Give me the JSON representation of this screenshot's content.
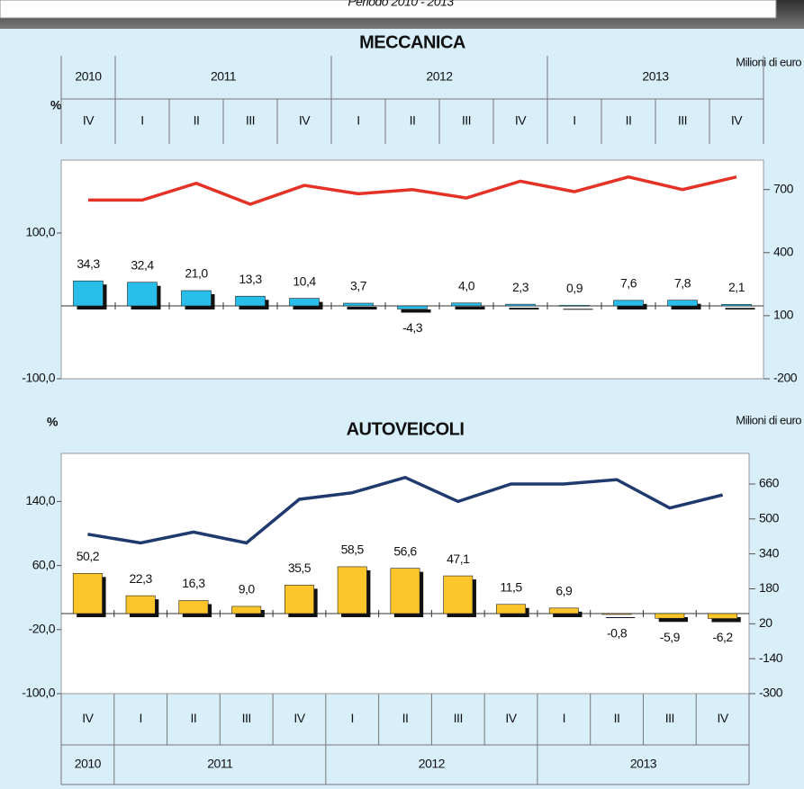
{
  "header": {
    "subtitle": "Periodo 2010 - 2013"
  },
  "chart_data": [
    {
      "type": "combo",
      "title": "MECCANICA",
      "y_label": "%",
      "y2_label": "Milioni di euro",
      "categories": [
        "IV",
        "I",
        "II",
        "III",
        "IV",
        "I",
        "II",
        "III",
        "IV",
        "I",
        "II",
        "III",
        "IV"
      ],
      "groups": [
        {
          "label": "2010",
          "size": 1
        },
        {
          "label": "2011",
          "size": 4
        },
        {
          "label": "2012",
          "size": 4
        },
        {
          "label": "2013",
          "size": 4
        }
      ],
      "series": [
        {
          "kind": "bar",
          "color": "#29bdea",
          "values": [
            34.3,
            32.4,
            21.0,
            13.3,
            10.4,
            3.7,
            -4.3,
            4.0,
            2.3,
            0.9,
            7.6,
            7.8,
            2.1
          ],
          "value_labels": [
            "34,3",
            "32,4",
            "21,0",
            "13,3",
            "10,4",
            "3,7",
            "-4,3",
            "4,0",
            "2,3",
            "0,9",
            "7,6",
            "7,8",
            "2,1"
          ]
        },
        {
          "kind": "line",
          "color": "#e53227",
          "axis": "y2",
          "values": [
            650,
            650,
            730,
            630,
            720,
            680,
            700,
            660,
            740,
            690,
            760,
            700,
            760
          ]
        }
      ],
      "ylim": [
        -100,
        200
      ],
      "yticks": [
        {
          "value": -100,
          "label": "-100,0"
        },
        {
          "value": 100,
          "label": "100,0"
        }
      ],
      "y2lim": [
        -200,
        840
      ],
      "y2ticks": [
        -200,
        100,
        400,
        700
      ],
      "grid": false
    },
    {
      "type": "combo",
      "title": "AUTOVEICOLI",
      "y_label": "%",
      "y2_label": "Milioni di euro",
      "categories": [
        "IV",
        "I",
        "II",
        "III",
        "IV",
        "I",
        "II",
        "III",
        "IV",
        "I",
        "II",
        "III",
        "IV"
      ],
      "groups": [
        {
          "label": "2010",
          "size": 1
        },
        {
          "label": "2011",
          "size": 4
        },
        {
          "label": "2012",
          "size": 4
        },
        {
          "label": "2013",
          "size": 4
        }
      ],
      "series": [
        {
          "kind": "bar",
          "color": "#fcc52a",
          "values": [
            50.2,
            22.3,
            16.3,
            9.0,
            35.5,
            58.5,
            56.6,
            47.1,
            11.5,
            6.9,
            -0.8,
            -5.9,
            -6.2
          ],
          "value_labels": [
            "50,2",
            "22,3",
            "16,3",
            "9,0",
            "35,5",
            "58,5",
            "56,6",
            "47,1",
            "11,5",
            "6,9",
            "-0,8",
            "-5,9",
            "-6,2"
          ]
        },
        {
          "kind": "line",
          "color": "#1f3a6e",
          "axis": "y2",
          "values": [
            430,
            390,
            440,
            390,
            590,
            620,
            690,
            580,
            660,
            660,
            680,
            550,
            610
          ]
        }
      ],
      "ylim": [
        -100,
        200
      ],
      "yticks": [
        {
          "value": -100,
          "label": "-100,0"
        },
        {
          "value": -20,
          "label": "-20,0"
        },
        {
          "value": 60,
          "label": "60,0"
        },
        {
          "value": 140,
          "label": "140,0"
        }
      ],
      "y2lim": [
        -300,
        800
      ],
      "y2ticks": [
        -300,
        -140,
        20,
        180,
        340,
        500,
        660
      ],
      "grid": false
    }
  ]
}
